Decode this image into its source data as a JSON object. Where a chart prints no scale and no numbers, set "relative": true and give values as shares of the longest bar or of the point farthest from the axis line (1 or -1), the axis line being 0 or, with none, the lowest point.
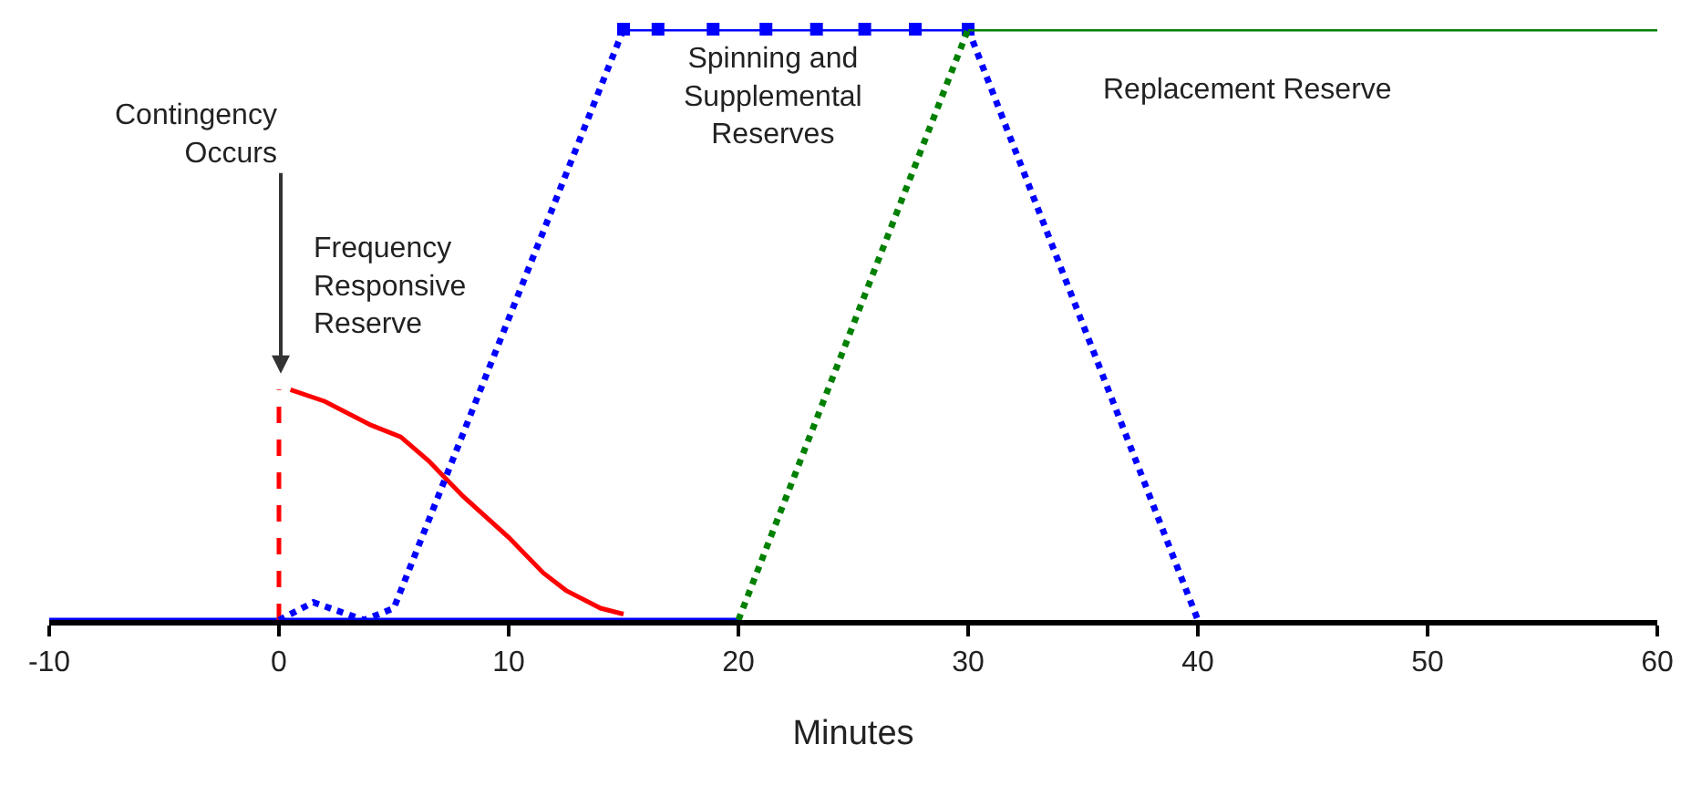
{
  "chart_data": {
    "type": "line",
    "relative": true,
    "xlabel": "Minutes",
    "xlim": [
      -10,
      60
    ],
    "xticks": [
      -10,
      0,
      10,
      20,
      30,
      40,
      50,
      60
    ],
    "grid": false,
    "series": [
      {
        "color": "#0000ff",
        "line_style": "solid",
        "marker": "none",
        "x": [
          -10,
          20
        ],
        "values": [
          0,
          0
        ]
      },
      {
        "color": "#ff0000",
        "line_style": "dashed",
        "marker": "none",
        "x": [
          0,
          0
        ],
        "values": [
          0,
          0.39
        ]
      },
      {
        "color": "#ff0000",
        "line_style": "solid",
        "marker": "none",
        "x": [
          0.5,
          2,
          4,
          5.3,
          6.5,
          8,
          10,
          11.5,
          12.5,
          14,
          15
        ],
        "values": [
          0.39,
          0.37,
          0.33,
          0.31,
          0.27,
          0.21,
          0.14,
          0.08,
          0.05,
          0.02,
          0.01
        ]
      },
      {
        "color": "#0000ff",
        "line_style": "dotted",
        "marker": "none",
        "x": [
          0,
          1.5,
          3.7,
          5,
          15
        ],
        "values": [
          0,
          0.03,
          0,
          0.02,
          1
        ]
      },
      {
        "color": "#0000ff",
        "line_style": "solid",
        "marker": "square",
        "x": [
          15,
          16.5,
          18.9,
          21.2,
          23.4,
          25.5,
          27.7,
          30
        ],
        "values": [
          1,
          1,
          1,
          1,
          1,
          1,
          1,
          1
        ]
      },
      {
        "color": "#0000ff",
        "line_style": "dotted",
        "marker": "none",
        "x": [
          30,
          40
        ],
        "values": [
          1,
          0
        ]
      },
      {
        "color": "#008000",
        "line_style": "dotted",
        "marker": "none",
        "x": [
          20,
          30
        ],
        "values": [
          0,
          1
        ]
      },
      {
        "color": "#008000",
        "line_style": "solid",
        "marker": "none",
        "x": [
          30,
          60
        ],
        "values": [
          1,
          1
        ]
      }
    ],
    "annotations": [
      "Contingency\nOccurs",
      "Frequency\nResponsive\nReserve",
      "Spinning and\nSupplemental\nReserves",
      "Replacement Reserve"
    ]
  }
}
